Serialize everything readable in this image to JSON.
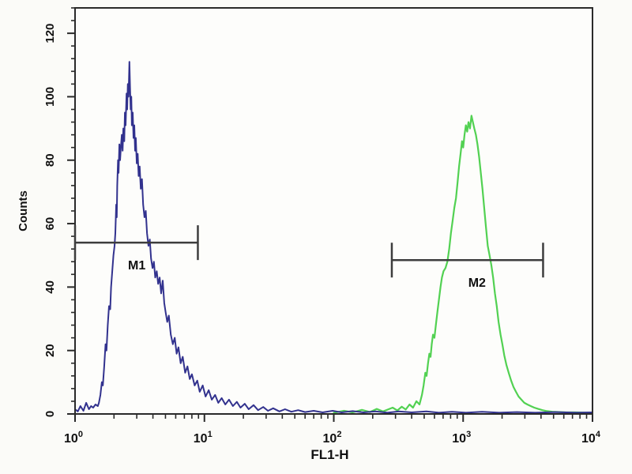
{
  "figure": {
    "kind": "flow-cytometry-histogram",
    "xlabel": "FL1-H",
    "ylabel": "Counts"
  },
  "chart_data": {
    "type": "line",
    "title": "",
    "xlabel": "FL1-H",
    "ylabel": "Counts",
    "x_scale": "log10",
    "xlim": [
      1,
      10000
    ],
    "x_major_tick_exponents": [
      0,
      1,
      2,
      3,
      4
    ],
    "x_tick_base": "10",
    "x_minor_ticks_per_decade": [
      2,
      3,
      4,
      5,
      6,
      7,
      8,
      9
    ],
    "ylim": [
      0,
      128
    ],
    "y_ticks": [
      0,
      20,
      40,
      60,
      80,
      100,
      120
    ],
    "y_minor_step": 4,
    "grid": false,
    "legend_position": "none",
    "colors": {
      "blue_series": "#32328e",
      "green_series": "#52d152",
      "marker_line": "#3d3d3d",
      "axis": "#2a2a2a",
      "text": "#111111",
      "background": "#fbfbf8",
      "plot_background": "#fdfdfb"
    },
    "markers": [
      {
        "label": "M1",
        "x1": 1.0,
        "x2": 8.9,
        "y": 54,
        "label_x": 3.0
      },
      {
        "label": "M2",
        "x1": 281,
        "x2": 4150,
        "y": 48.5,
        "label_x": 1280
      }
    ],
    "series": [
      {
        "name": "blue-negative-population",
        "color": "#32328e",
        "peak": {
          "x": 2.65,
          "counts": 111
        },
        "points": [
          [
            1.0,
            1.5
          ],
          [
            1.05,
            0.8
          ],
          [
            1.1,
            2.5
          ],
          [
            1.16,
            1
          ],
          [
            1.22,
            3.5
          ],
          [
            1.28,
            1.5
          ],
          [
            1.33,
            2.5
          ],
          [
            1.38,
            2
          ],
          [
            1.44,
            3
          ],
          [
            1.5,
            2.5
          ],
          [
            1.53,
            3.5
          ],
          [
            1.57,
            6
          ],
          [
            1.61,
            10
          ],
          [
            1.64,
            9
          ],
          [
            1.68,
            15
          ],
          [
            1.72,
            22
          ],
          [
            1.75,
            20
          ],
          [
            1.79,
            28
          ],
          [
            1.83,
            34
          ],
          [
            1.87,
            33
          ],
          [
            1.9,
            40
          ],
          [
            1.94,
            45
          ],
          [
            1.98,
            50
          ],
          [
            2.02,
            53
          ],
          [
            2.05,
            57
          ],
          [
            2.08,
            66
          ],
          [
            2.1,
            62
          ],
          [
            2.12,
            72
          ],
          [
            2.15,
            80
          ],
          [
            2.17,
            76
          ],
          [
            2.2,
            85
          ],
          [
            2.23,
            80
          ],
          [
            2.26,
            84
          ],
          [
            2.3,
            88
          ],
          [
            2.33,
            83
          ],
          [
            2.36,
            90
          ],
          [
            2.4,
            86
          ],
          [
            2.43,
            95
          ],
          [
            2.46,
            91
          ],
          [
            2.5,
            101
          ],
          [
            2.53,
            96
          ],
          [
            2.56,
            104
          ],
          [
            2.59,
            100
          ],
          [
            2.63,
            111
          ],
          [
            2.66,
            103
          ],
          [
            2.69,
            96
          ],
          [
            2.72,
            100
          ],
          [
            2.75,
            91
          ],
          [
            2.79,
            95
          ],
          [
            2.83,
            87
          ],
          [
            2.87,
            91
          ],
          [
            2.91,
            83
          ],
          [
            2.95,
            87
          ],
          [
            3.0,
            79
          ],
          [
            3.05,
            82
          ],
          [
            3.1,
            75
          ],
          [
            3.16,
            78
          ],
          [
            3.22,
            71
          ],
          [
            3.29,
            74
          ],
          [
            3.36,
            66
          ],
          [
            3.44,
            62
          ],
          [
            3.52,
            64
          ],
          [
            3.6,
            57
          ],
          [
            3.69,
            53
          ],
          [
            3.78,
            55
          ],
          [
            3.87,
            49
          ],
          [
            3.97,
            46
          ],
          [
            4.07,
            48
          ],
          [
            4.17,
            43
          ],
          [
            4.28,
            45
          ],
          [
            4.39,
            41
          ],
          [
            4.51,
            43
          ],
          [
            4.63,
            38
          ],
          [
            4.76,
            42
          ],
          [
            4.89,
            35
          ],
          [
            5.02,
            32
          ],
          [
            5.16,
            29
          ],
          [
            5.31,
            31
          ],
          [
            5.5,
            25
          ],
          [
            5.7,
            22
          ],
          [
            5.9,
            24
          ],
          [
            6.1,
            19
          ],
          [
            6.3,
            21
          ],
          [
            6.55,
            16
          ],
          [
            6.8,
            18
          ],
          [
            7.1,
            13
          ],
          [
            7.4,
            15
          ],
          [
            7.7,
            11
          ],
          [
            8.0,
            12.5
          ],
          [
            8.4,
            9
          ],
          [
            8.8,
            10.5
          ],
          [
            9.2,
            7
          ],
          [
            9.7,
            9
          ],
          [
            10.2,
            5.5
          ],
          [
            10.8,
            7.5
          ],
          [
            11.4,
            4.5
          ],
          [
            12.1,
            6
          ],
          [
            12.8,
            3.5
          ],
          [
            13.6,
            5
          ],
          [
            14.5,
            3
          ],
          [
            15.5,
            4.5
          ],
          [
            16.6,
            2.5
          ],
          [
            17.8,
            3.8
          ],
          [
            19,
            2
          ],
          [
            20.5,
            3.2
          ],
          [
            22,
            1.5
          ],
          [
            24,
            2.8
          ],
          [
            26,
            1.2
          ],
          [
            28.5,
            2.2
          ],
          [
            31,
            1
          ],
          [
            34,
            1.8
          ],
          [
            38,
            0.8
          ],
          [
            42,
            1.5
          ],
          [
            47,
            0.7
          ],
          [
            53,
            1.2
          ],
          [
            60,
            0.6
          ],
          [
            70,
            1
          ],
          [
            82,
            0.5
          ],
          [
            98,
            1
          ],
          [
            115,
            0.5
          ],
          [
            140,
            0.9
          ],
          [
            170,
            0.5
          ],
          [
            210,
            0.8
          ],
          [
            260,
            0.4
          ],
          [
            320,
            0.8
          ],
          [
            400,
            0.5
          ],
          [
            520,
            0.8
          ],
          [
            650,
            0.4
          ],
          [
            820,
            0.7
          ],
          [
            1050,
            0.4
          ],
          [
            1400,
            0.7
          ],
          [
            1900,
            0.4
          ],
          [
            2600,
            0.6
          ],
          [
            3600,
            0.4
          ],
          [
            5200,
            0.6
          ],
          [
            7500,
            0.4
          ],
          [
            9900,
            0.5
          ]
        ]
      },
      {
        "name": "green-positive-population",
        "color": "#52d152",
        "peak": {
          "x": 1160,
          "counts": 94
        },
        "points": [
          [
            100,
            0.4
          ],
          [
            120,
            1
          ],
          [
            140,
            0.5
          ],
          [
            165,
            1.3
          ],
          [
            190,
            0.6
          ],
          [
            215,
            1.6
          ],
          [
            240,
            0.8
          ],
          [
            262,
            1.4
          ],
          [
            285,
            2
          ],
          [
            310,
            1.1
          ],
          [
            335,
            2.3
          ],
          [
            360,
            1.4
          ],
          [
            385,
            3
          ],
          [
            410,
            2
          ],
          [
            435,
            4
          ],
          [
            460,
            3
          ],
          [
            480,
            6
          ],
          [
            495,
            9
          ],
          [
            510,
            13
          ],
          [
            522,
            12
          ],
          [
            535,
            16
          ],
          [
            548,
            19
          ],
          [
            560,
            18
          ],
          [
            572,
            22
          ],
          [
            585,
            25
          ],
          [
            600,
            24
          ],
          [
            615,
            28
          ],
          [
            632,
            32
          ],
          [
            650,
            36
          ],
          [
            668,
            40
          ],
          [
            686,
            43
          ],
          [
            705,
            45
          ],
          [
            730,
            46
          ],
          [
            755,
            48
          ],
          [
            780,
            52
          ],
          [
            805,
            57
          ],
          [
            830,
            61
          ],
          [
            855,
            65
          ],
          [
            880,
            68
          ],
          [
            905,
            73
          ],
          [
            930,
            78
          ],
          [
            955,
            82
          ],
          [
            980,
            86
          ],
          [
            1000,
            84
          ],
          [
            1025,
            88
          ],
          [
            1050,
            91
          ],
          [
            1075,
            89
          ],
          [
            1100,
            92
          ],
          [
            1130,
            90
          ],
          [
            1160,
            94
          ],
          [
            1190,
            92
          ],
          [
            1220,
            90
          ],
          [
            1255,
            88
          ],
          [
            1290,
            85
          ],
          [
            1330,
            81
          ],
          [
            1370,
            76
          ],
          [
            1410,
            71
          ],
          [
            1455,
            65
          ],
          [
            1500,
            59
          ],
          [
            1550,
            53
          ],
          [
            1600,
            50
          ],
          [
            1650,
            47
          ],
          [
            1705,
            43
          ],
          [
            1760,
            38
          ],
          [
            1820,
            34
          ],
          [
            1880,
            29
          ],
          [
            1945,
            25
          ],
          [
            2010,
            22
          ],
          [
            2080,
            18.5
          ],
          [
            2160,
            15.5
          ],
          [
            2250,
            13
          ],
          [
            2350,
            10.5
          ],
          [
            2450,
            8.5
          ],
          [
            2560,
            7
          ],
          [
            2680,
            5.5
          ],
          [
            2820,
            4.5
          ],
          [
            2970,
            3.5
          ],
          [
            3140,
            3
          ],
          [
            3330,
            2.5
          ],
          [
            3550,
            2
          ],
          [
            3800,
            1.6
          ],
          [
            4100,
            1.2
          ],
          [
            4450,
            0.9
          ],
          [
            4900,
            0.7
          ],
          [
            5500,
            0.6
          ],
          [
            6300,
            0.5
          ],
          [
            7400,
            0.5
          ],
          [
            8800,
            0.4
          ],
          [
            9900,
            0.4
          ]
        ]
      }
    ]
  }
}
